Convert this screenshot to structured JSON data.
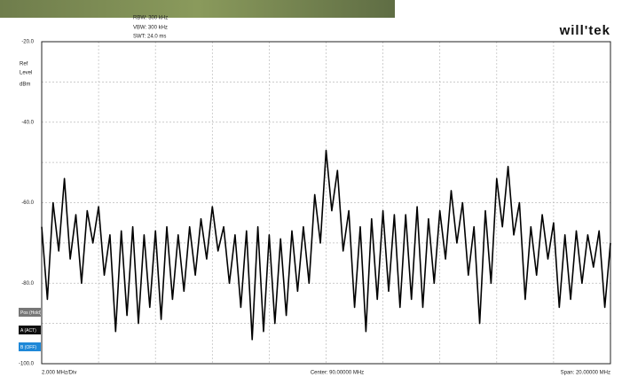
{
  "header": {
    "rbw": "RBW: 300 kHz",
    "vbw": "VBW: 300 kHz",
    "swt": "SWT: 24.0 ms",
    "logo": "will'tek"
  },
  "controls": {
    "ref_label": [
      "Ref",
      "Level",
      "dBm"
    ],
    "buttons": [
      "Pos (Hold)",
      "A (ACT)",
      "B (OFF)"
    ]
  },
  "footer": {
    "div": "2.000 MHz/Div",
    "center": "Center: 90.00000 MHz",
    "span": "Span: 20.00000 MHz"
  },
  "chart_data": {
    "type": "line",
    "color": "#000000",
    "grid": true,
    "xlim": [
      80,
      100
    ],
    "xticks": [
      80,
      82,
      84,
      86,
      88,
      90,
      92,
      94,
      96,
      98,
      100
    ],
    "ylim": [
      -100,
      -20
    ],
    "yticks": [
      {
        "value": -20,
        "label": "-20.0"
      },
      {
        "value": -40,
        "label": "-40.0"
      },
      {
        "value": -60,
        "label": "-60.0"
      },
      {
        "value": -80,
        "label": "-80.0"
      },
      {
        "value": -100,
        "label": "-100.0"
      }
    ],
    "yminorticks": [
      -30,
      -50,
      -70,
      -90
    ],
    "x": [
      80.0,
      80.2,
      80.4,
      80.6,
      80.8,
      81.0,
      81.2,
      81.4,
      81.6,
      81.8,
      82.0,
      82.2,
      82.4,
      82.6,
      82.8,
      83.0,
      83.2,
      83.4,
      83.6,
      83.8,
      84.0,
      84.2,
      84.4,
      84.6,
      84.8,
      85.0,
      85.2,
      85.4,
      85.6,
      85.8,
      86.0,
      86.2,
      86.4,
      86.6,
      86.8,
      87.0,
      87.2,
      87.4,
      87.6,
      87.8,
      88.0,
      88.2,
      88.4,
      88.6,
      88.8,
      89.0,
      89.2,
      89.4,
      89.6,
      89.8,
      90.0,
      90.2,
      90.4,
      90.6,
      90.8,
      91.0,
      91.2,
      91.4,
      91.6,
      91.8,
      92.0,
      92.2,
      92.4,
      92.6,
      92.8,
      93.0,
      93.2,
      93.4,
      93.6,
      93.8,
      94.0,
      94.2,
      94.4,
      94.6,
      94.8,
      95.0,
      95.2,
      95.4,
      95.6,
      95.8,
      96.0,
      96.2,
      96.4,
      96.6,
      96.8,
      97.0,
      97.2,
      97.4,
      97.6,
      97.8,
      98.0,
      98.2,
      98.4,
      98.6,
      98.8,
      99.0,
      99.2,
      99.4,
      99.6,
      99.8,
      100.0
    ],
    "values": [
      -66,
      -84,
      -60,
      -72,
      -54,
      -74,
      -63,
      -80,
      -62,
      -70,
      -61,
      -78,
      -68,
      -92,
      -67,
      -88,
      -66,
      -90,
      -68,
      -86,
      -67,
      -89,
      -66,
      -84,
      -68,
      -82,
      -66,
      -78,
      -64,
      -74,
      -61,
      -72,
      -66,
      -80,
      -68,
      -86,
      -67,
      -94,
      -66,
      -92,
      -68,
      -90,
      -69,
      -88,
      -67,
      -82,
      -66,
      -80,
      -58,
      -70,
      -47,
      -62,
      -52,
      -72,
      -62,
      -86,
      -66,
      -92,
      -64,
      -84,
      -62,
      -82,
      -63,
      -86,
      -63,
      -84,
      -61,
      -86,
      -64,
      -80,
      -62,
      -74,
      -57,
      -70,
      -60,
      -78,
      -66,
      -90,
      -62,
      -80,
      -54,
      -66,
      -51,
      -68,
      -60,
      -84,
      -66,
      -78,
      -63,
      -74,
      -65,
      -86,
      -68,
      -84,
      -67,
      -80,
      -68,
      -76,
      -67,
      -86,
      -70
    ]
  }
}
